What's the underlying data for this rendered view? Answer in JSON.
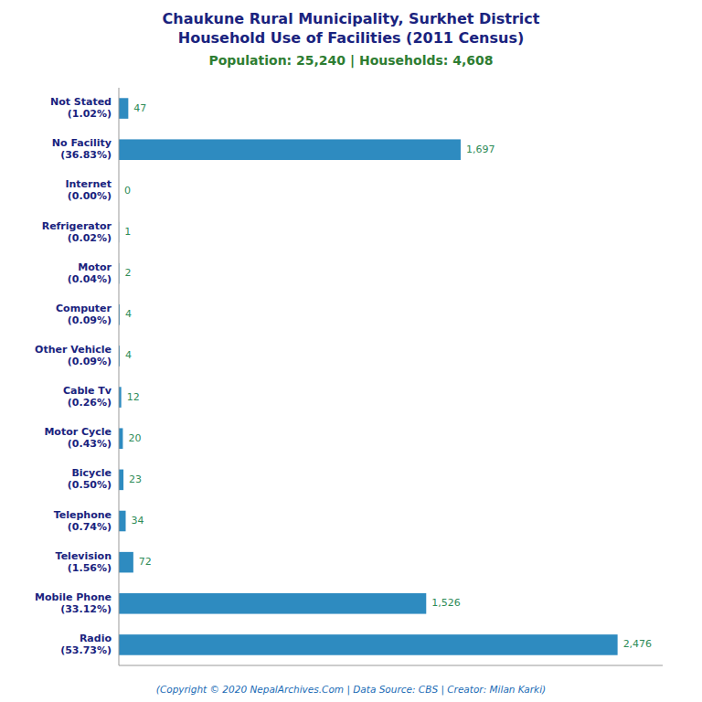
{
  "chart_data": {
    "type": "bar",
    "orientation": "horizontal",
    "title": "Chaukune Rural Municipality, Surkhet District\nHousehold Use of Facilities (2011 Census)",
    "subtitle": "Population: 25,240 | Households: 4,608",
    "annotations": [
      "(Copyright © 2020 NepalArchives.Com | Data Source: CBS | Creator: Milan Karki)"
    ],
    "categories": [
      "Not Stated\n(1.02%)",
      "No Facility\n(36.83%)",
      "Internet\n(0.00%)",
      "Refrigerator\n(0.02%)",
      "Motor\n(0.04%)",
      "Computer\n(0.09%)",
      "Other Vehicle\n(0.09%)",
      "Cable Tv\n(0.26%)",
      "Motor Cycle\n(0.43%)",
      "Bicycle\n(0.50%)",
      "Telephone\n(0.74%)",
      "Television\n(1.56%)",
      "Mobile Phone\n(33.12%)",
      "Radio\n(53.73%)"
    ],
    "values": [
      47,
      1697,
      0,
      1,
      2,
      4,
      4,
      12,
      20,
      23,
      34,
      72,
      1526,
      2476
    ],
    "value_labels": [
      "47",
      "1,697",
      "0",
      "1",
      "2",
      "4",
      "4",
      "12",
      "20",
      "23",
      "34",
      "72",
      "1,526",
      "2,476"
    ],
    "data_labels": true,
    "color": "#2E8BC0",
    "xlim": [
      0,
      2700
    ],
    "grid": false,
    "tick_labels": "y"
  }
}
